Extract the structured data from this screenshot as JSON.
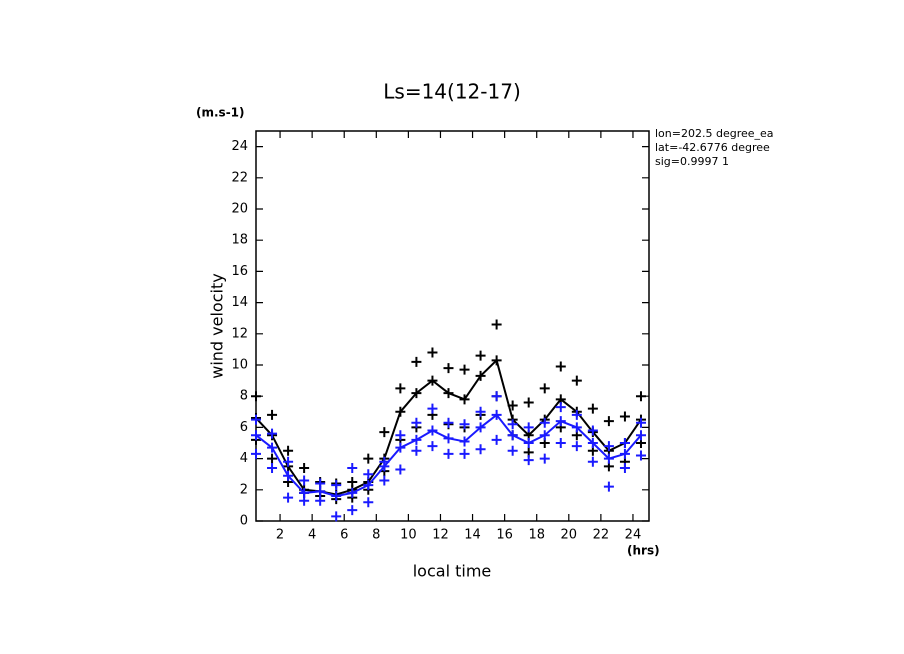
{
  "chart_data": {
    "type": "line",
    "title": "Ls=14(12-17)",
    "y_unit": "(m.s-1)",
    "x_unit": "(hrs)",
    "xlabel": "local time",
    "ylabel": "wind velocity",
    "annotations": [
      "lon=202.5 degree_ea",
      "lat=-42.6776 degree",
      "sig=0.9997 1"
    ],
    "x": [
      0.5,
      1.5,
      2.5,
      3.5,
      4.5,
      5.5,
      6.5,
      7.5,
      8.5,
      9.5,
      10.5,
      11.5,
      12.5,
      13.5,
      14.5,
      15.5,
      16.5,
      17.5,
      18.5,
      19.5,
      20.5,
      21.5,
      22.5,
      23.5,
      24.5
    ],
    "xlim": [
      0.5,
      25
    ],
    "xticks": [
      2,
      4,
      6,
      8,
      10,
      12,
      14,
      16,
      18,
      20,
      22,
      24
    ],
    "ylim": [
      0,
      25
    ],
    "yticks": [
      0,
      2,
      4,
      6,
      8,
      10,
      12,
      14,
      16,
      18,
      20,
      22,
      24
    ],
    "series": [
      {
        "color": "#000000",
        "values": [
          6.6,
          5.5,
          3.5,
          2.0,
          1.9,
          1.7,
          2.0,
          2.5,
          4.0,
          7.0,
          8.2,
          9.0,
          8.2,
          7.8,
          9.3,
          10.3,
          6.5,
          5.5,
          6.5,
          7.8,
          7.0,
          5.7,
          4.5,
          5.0,
          6.5
        ],
        "max": [
          8.0,
          6.8,
          4.5,
          3.4,
          2.5,
          2.4,
          2.5,
          4.0,
          5.7,
          8.5,
          10.2,
          10.8,
          9.8,
          9.7,
          10.6,
          12.6,
          7.4,
          7.6,
          8.5,
          9.9,
          9.0,
          7.2,
          6.4,
          6.7,
          8.0
        ],
        "min": [
          5.2,
          4.0,
          2.5,
          1.8,
          1.6,
          1.4,
          1.5,
          2.0,
          3.2,
          5.2,
          6.0,
          6.8,
          6.2,
          6.0,
          6.8,
          8.0,
          5.5,
          4.4,
          5.0,
          6.0,
          5.5,
          4.5,
          3.5,
          3.8,
          5.0
        ]
      },
      {
        "color": "#1a1aff",
        "values": [
          5.5,
          4.7,
          2.9,
          1.8,
          1.9,
          1.6,
          1.8,
          2.3,
          3.5,
          4.7,
          5.2,
          5.8,
          5.3,
          5.1,
          6.0,
          6.8,
          5.5,
          5.0,
          5.5,
          6.4,
          6.0,
          5.0,
          4.0,
          4.3,
          5.5
        ],
        "max": [
          6.5,
          5.6,
          3.8,
          2.6,
          2.4,
          2.3,
          3.4,
          3.0,
          3.8,
          5.5,
          6.3,
          7.2,
          6.3,
          6.2,
          7.0,
          8.0,
          6.2,
          6.0,
          6.3,
          7.3,
          6.8,
          5.8,
          4.8,
          5.0,
          6.3
        ],
        "min": [
          4.3,
          3.4,
          1.5,
          1.3,
          1.3,
          0.3,
          0.7,
          1.2,
          2.6,
          3.3,
          4.5,
          4.8,
          4.3,
          4.3,
          4.6,
          5.2,
          4.5,
          3.9,
          4.0,
          5.0,
          4.8,
          3.8,
          2.2,
          3.4,
          4.2
        ]
      }
    ]
  }
}
